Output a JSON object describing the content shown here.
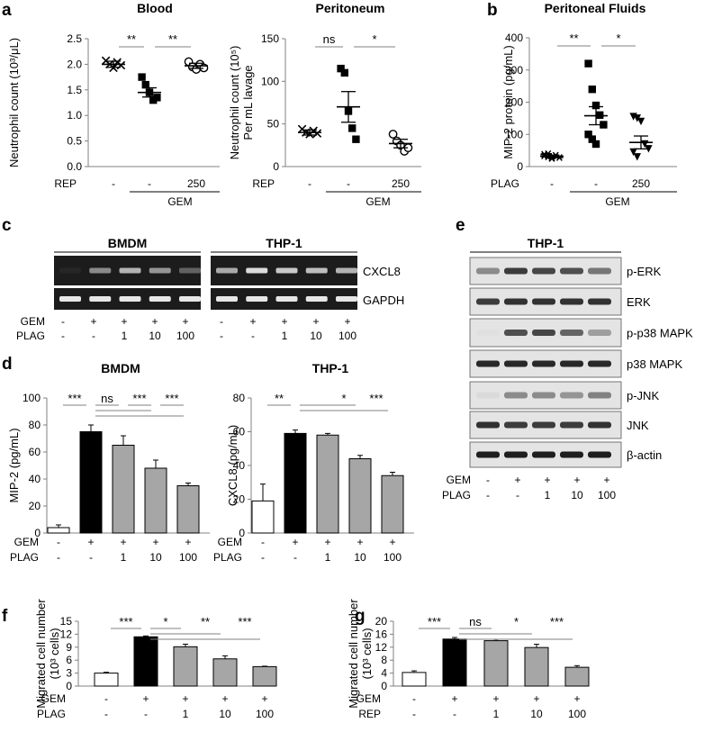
{
  "panel_labels": [
    "a",
    "b",
    "c",
    "d",
    "e",
    "f",
    "g"
  ],
  "colors": {
    "black": "#000000",
    "gray": "#a6a6a6",
    "white": "#ffffff",
    "line": "#808080",
    "gel": "#1c1c1c",
    "band": "#e6e6e6",
    "blot_bg": "#e4e4e4",
    "blot_band": "#1e1e1e"
  },
  "chart_data": [
    {
      "id": "a_blood",
      "panel": "a",
      "type": "scatter",
      "title": "Blood",
      "ylabel": "Neutrophil count (10³/μL)",
      "ylim": [
        0,
        2.5
      ],
      "yticks": [
        "0.0",
        "0.5",
        "1.0",
        "1.5",
        "2.0",
        "2.5"
      ],
      "groups": [
        {
          "rep": "-",
          "gem": "",
          "marker": "x",
          "mean": 2.0,
          "sem": 0.06,
          "points": [
            2.07,
            2.0,
            1.93,
            2.04,
            1.98
          ]
        },
        {
          "rep": "-",
          "gem": "GEM",
          "marker": "square",
          "mean": 1.45,
          "sem": 0.09,
          "points": [
            1.75,
            1.6,
            1.45,
            1.3,
            1.35
          ]
        },
        {
          "rep": "250",
          "gem": "GEM",
          "marker": "circle",
          "mean": 1.97,
          "sem": 0.05,
          "points": [
            2.05,
            1.95,
            1.9,
            2.0,
            1.93
          ]
        }
      ],
      "row_labels": [
        "REP"
      ],
      "gem_label": "GEM",
      "significance": [
        {
          "from": 0,
          "to": 1,
          "label": "**"
        },
        {
          "from": 1,
          "to": 2,
          "label": "**"
        }
      ]
    },
    {
      "id": "a_perit",
      "panel": "a",
      "type": "scatter",
      "title": "Peritoneum",
      "ylabel": "Neutrophil count (10⁵)\nPer mL lavage",
      "ylabel_lines": [
        "Neutrophil count (10⁵)",
        "Per mL lavage"
      ],
      "ylim": [
        0,
        150
      ],
      "yticks": [
        "0",
        "50",
        "100",
        "150"
      ],
      "groups": [
        {
          "rep": "-",
          "gem": "",
          "marker": "x",
          "mean": 40,
          "sem": 3,
          "points": [
            44,
            40,
            38,
            42,
            39
          ]
        },
        {
          "rep": "-",
          "gem": "GEM",
          "marker": "square",
          "mean": 70,
          "sem": 18,
          "points": [
            115,
            110,
            65,
            45,
            32
          ]
        },
        {
          "rep": "250",
          "gem": "GEM",
          "marker": "circle",
          "mean": 27,
          "sem": 5,
          "points": [
            38,
            30,
            25,
            18,
            22
          ]
        }
      ],
      "row_labels": [
        "REP"
      ],
      "gem_label": "GEM",
      "significance": [
        {
          "from": 0,
          "to": 1,
          "label": "ns"
        },
        {
          "from": 1,
          "to": 2,
          "label": "*"
        }
      ]
    },
    {
      "id": "b",
      "panel": "b",
      "type": "scatter",
      "title": "Peritoneal Fluids",
      "ylabel": "MIP-2 protein (pg/mL)",
      "ylim": [
        0,
        400
      ],
      "yticks": [
        "0",
        "100",
        "200",
        "300",
        "400"
      ],
      "groups": [
        {
          "rep": "-",
          "gem": "",
          "marker": "star",
          "mean": 32,
          "sem": 4,
          "points": [
            38,
            30,
            25,
            35,
            28,
            33,
            40,
            27
          ]
        },
        {
          "rep": "-",
          "gem": "GEM",
          "marker": "square",
          "mean": 158,
          "sem": 28,
          "points": [
            320,
            240,
            190,
            160,
            130,
            100,
            85,
            70
          ]
        },
        {
          "rep": "250",
          "gem": "GEM",
          "marker": "triangle",
          "mean": 75,
          "sem": 20,
          "points": [
            155,
            150,
            140,
            70,
            55,
            45,
            30
          ]
        }
      ],
      "row_labels": [
        "PLAG"
      ],
      "gem_label": "GEM",
      "significance": [
        {
          "from": 0,
          "to": 1,
          "label": "**"
        },
        {
          "from": 1,
          "to": 2,
          "label": "*"
        }
      ]
    },
    {
      "id": "d_bmdm",
      "panel": "d",
      "type": "bar",
      "title": "BMDM",
      "ylabel": "MIP-2  (pg/mL)",
      "ylim": [
        0,
        100
      ],
      "yticks": [
        "0",
        "20",
        "40",
        "60",
        "80",
        "100"
      ],
      "values": [
        4,
        75,
        65,
        48,
        35
      ],
      "errors": [
        2,
        5,
        7,
        6,
        2
      ],
      "bar_colors": [
        "white",
        "black",
        "gray",
        "gray",
        "gray"
      ],
      "row_labels": [
        "GEM",
        "PLAG"
      ],
      "rows": [
        [
          "-",
          "+",
          "+",
          "+",
          "+"
        ],
        [
          "-",
          "-",
          "1",
          "10",
          "100"
        ]
      ],
      "significance": [
        {
          "from": 0,
          "to": 1,
          "label": "***",
          "level": 0
        },
        {
          "from": 1,
          "to": 2,
          "label": "ns",
          "level": 0
        },
        {
          "from": 1,
          "to": 3,
          "label": "",
          "level": 1
        },
        {
          "from": 1,
          "to": 4,
          "label": "",
          "level": 2
        },
        {
          "from": 2,
          "to": 3,
          "label": "***",
          "level": 0
        },
        {
          "from": 3,
          "to": 4,
          "label": "***",
          "level": 0
        }
      ]
    },
    {
      "id": "d_thp1",
      "panel": "d",
      "type": "bar",
      "title": "THP-1",
      "ylabel": "CXCL8  (pg/mL)",
      "ylim": [
        0,
        80
      ],
      "yticks": [
        "0",
        "20",
        "40",
        "60",
        "80"
      ],
      "values": [
        19,
        59,
        58,
        44,
        34
      ],
      "errors": [
        10,
        2,
        1,
        2,
        2
      ],
      "bar_colors": [
        "white",
        "black",
        "gray",
        "gray",
        "gray"
      ],
      "row_labels": [
        "GEM",
        "PLAG"
      ],
      "rows": [
        [
          "-",
          "+",
          "+",
          "+",
          "+"
        ],
        [
          "-",
          "-",
          "1",
          "10",
          "100"
        ]
      ],
      "significance": [
        {
          "from": 0,
          "to": 1,
          "label": "**",
          "level": 0
        },
        {
          "from": 1,
          "to": 3,
          "label": "*",
          "level": 0
        },
        {
          "from": 1,
          "to": 4,
          "label": "***",
          "level": 1
        }
      ]
    },
    {
      "id": "f",
      "panel": "f",
      "type": "bar",
      "title": "",
      "ylabel": "Migrated cell number\n(10³ cells)",
      "ylabel_lines": [
        "Migrated cell number",
        "(10³ cells)"
      ],
      "ylim": [
        0,
        15
      ],
      "yticks": [
        "0",
        "3",
        "6",
        "9",
        "12",
        "15"
      ],
      "values": [
        3.0,
        11.4,
        9.1,
        6.3,
        4.5
      ],
      "errors": [
        0.2,
        0.2,
        0.6,
        0.7,
        0.1
      ],
      "bar_colors": [
        "white",
        "black",
        "gray",
        "gray",
        "gray"
      ],
      "row_labels": [
        "GEM",
        "PLAG"
      ],
      "rows": [
        [
          "-",
          "+",
          "+",
          "+",
          "+"
        ],
        [
          "-",
          "-",
          "1",
          "10",
          "100"
        ]
      ],
      "significance": [
        {
          "from": 0,
          "to": 1,
          "label": "***",
          "level": 0
        },
        {
          "from": 1,
          "to": 2,
          "label": "*",
          "level": 0
        },
        {
          "from": 1,
          "to": 3,
          "label": "**",
          "level": 1
        },
        {
          "from": 1,
          "to": 4,
          "label": "***",
          "level": 2
        }
      ]
    },
    {
      "id": "g",
      "panel": "g",
      "type": "bar",
      "title": "",
      "ylabel": "Migrated cell number\n(10³ cells)",
      "ylabel_lines": [
        "Migrated cell number",
        "(10³ cells)"
      ],
      "ylim": [
        0,
        20
      ],
      "yticks": [
        "0",
        "4",
        "8",
        "12",
        "16",
        "20"
      ],
      "values": [
        4.2,
        14.5,
        14.0,
        11.9,
        5.8
      ],
      "errors": [
        0.5,
        0.5,
        0.4,
        1.0,
        0.5
      ],
      "bar_colors": [
        "white",
        "black",
        "gray",
        "gray",
        "gray"
      ],
      "row_labels": [
        "GEM",
        "REP"
      ],
      "rows": [
        [
          "-",
          "+",
          "+",
          "+",
          "+"
        ],
        [
          "-",
          "-",
          "1",
          "10",
          "100"
        ]
      ],
      "significance": [
        {
          "from": 0,
          "to": 1,
          "label": "***",
          "level": 0
        },
        {
          "from": 1,
          "to": 2,
          "label": "ns",
          "level": 0
        },
        {
          "from": 1,
          "to": 3,
          "label": "*",
          "level": 1
        },
        {
          "from": 1,
          "to": 4,
          "label": "***",
          "level": 2
        }
      ]
    }
  ],
  "gel_c": {
    "panel": "c",
    "groups": [
      {
        "title": "BMDM",
        "rows": [
          [
            0.05,
            0.55,
            0.75,
            0.6,
            0.35
          ],
          [
            1,
            1,
            1,
            1,
            1
          ]
        ]
      },
      {
        "title": "THP-1",
        "rows": [
          [
            0.7,
            0.95,
            0.85,
            0.8,
            0.75
          ],
          [
            1,
            1,
            1,
            1,
            1
          ]
        ]
      }
    ],
    "row_names": [
      "CXCL8",
      "GAPDH"
    ],
    "cond_labels": [
      "GEM",
      "PLAG"
    ],
    "cond_rows": [
      [
        "-",
        "+",
        "+",
        "+",
        "+"
      ],
      [
        "-",
        "-",
        "1",
        "10",
        "100"
      ]
    ]
  },
  "blot_e": {
    "panel": "e",
    "title": "THP-1",
    "rows": [
      {
        "name": "p-ERK",
        "intensity": [
          0.45,
          0.85,
          0.8,
          0.75,
          0.55
        ]
      },
      {
        "name": "ERK",
        "intensity": [
          0.85,
          0.9,
          0.9,
          0.9,
          0.9
        ]
      },
      {
        "name": "p-p38 MAPK",
        "intensity": [
          0.0,
          0.75,
          0.8,
          0.65,
          0.35
        ]
      },
      {
        "name": "p38 MAPK",
        "intensity": [
          0.95,
          0.95,
          0.95,
          0.95,
          0.95
        ]
      },
      {
        "name": "p-JNK",
        "intensity": [
          0.05,
          0.45,
          0.45,
          0.4,
          0.5
        ]
      },
      {
        "name": "JNK",
        "intensity": [
          0.9,
          0.85,
          0.85,
          0.85,
          0.9
        ]
      },
      {
        "name": "β-actin",
        "intensity": [
          1,
          1,
          1,
          1,
          1
        ]
      }
    ],
    "cond_labels": [
      "GEM",
      "PLAG"
    ],
    "cond_rows": [
      [
        "-",
        "+",
        "+",
        "+",
        "+"
      ],
      [
        "-",
        "-",
        "1",
        "10",
        "100"
      ]
    ]
  }
}
